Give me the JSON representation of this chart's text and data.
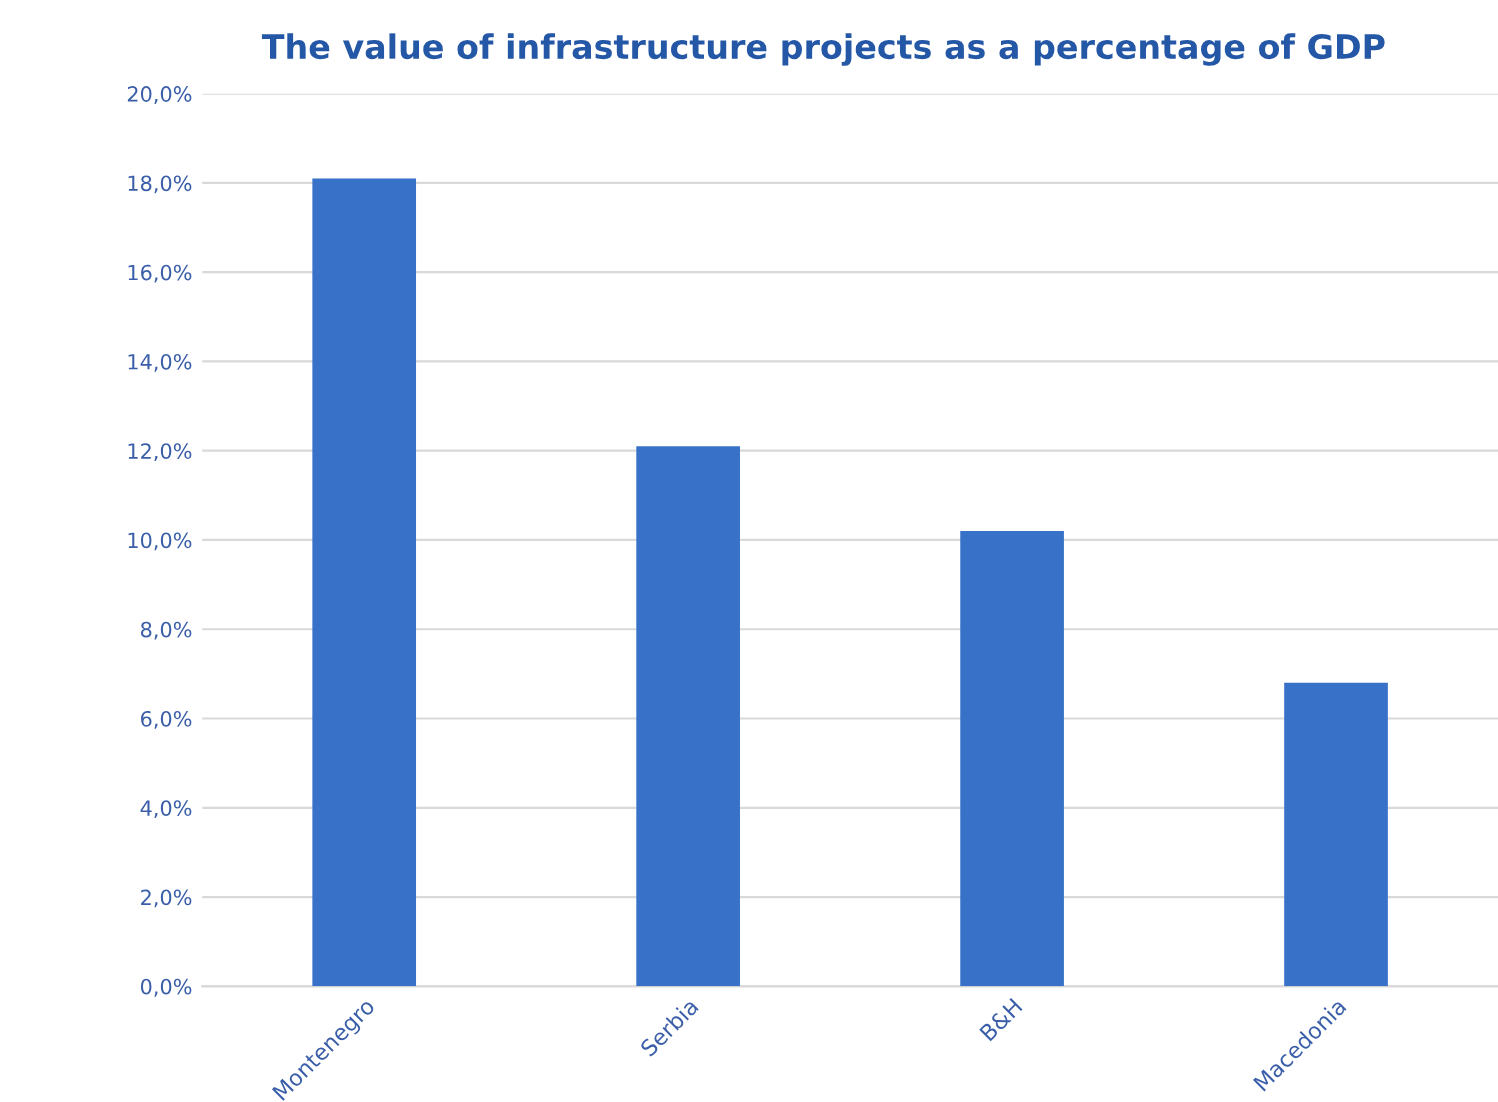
{
  "chart_data": {
    "type": "bar",
    "title": "The value of infrastructure projects as a percentage of GDP",
    "categories": [
      "Montenegro",
      "Serbia",
      "B&H",
      "Macedonia"
    ],
    "values": [
      18.1,
      12.1,
      10.2,
      6.8
    ],
    "color": "#3771c8",
    "ylim": [
      0,
      20
    ],
    "yticks": [
      {
        "value": 0,
        "label": "0,0%"
      },
      {
        "value": 2,
        "label": "2,0%"
      },
      {
        "value": 4,
        "label": "4,0%"
      },
      {
        "value": 6,
        "label": "6,0%"
      },
      {
        "value": 8,
        "label": "8,0%"
      },
      {
        "value": 10,
        "label": "10,0%"
      },
      {
        "value": 12,
        "label": "12,0%"
      },
      {
        "value": 14,
        "label": "14,0%"
      },
      {
        "value": 16,
        "label": "16,0%"
      },
      {
        "value": 18,
        "label": "18,0%"
      },
      {
        "value": 20,
        "label": "20,0%"
      }
    ],
    "grid": "y"
  }
}
